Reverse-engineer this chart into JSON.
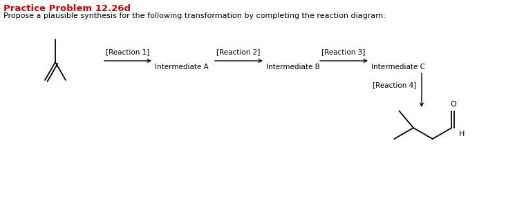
{
  "title": "Practice Problem 12.26d",
  "subtitle": "Propose a plausible synthesis for the following transformation by completing the reaction diagram:",
  "title_color": "#cc0000",
  "subtitle_color": "#000000",
  "background_color": "#ffffff",
  "reaction_labels": [
    "[Reaction 1]",
    "[Reaction 2]",
    "[Reaction 3]",
    "[Reaction 4]"
  ],
  "intermediate_labels": [
    "Intermediate A",
    "Intermediate B",
    "Intermediate C"
  ],
  "figsize": [
    7.45,
    2.88
  ],
  "dpi": 100
}
